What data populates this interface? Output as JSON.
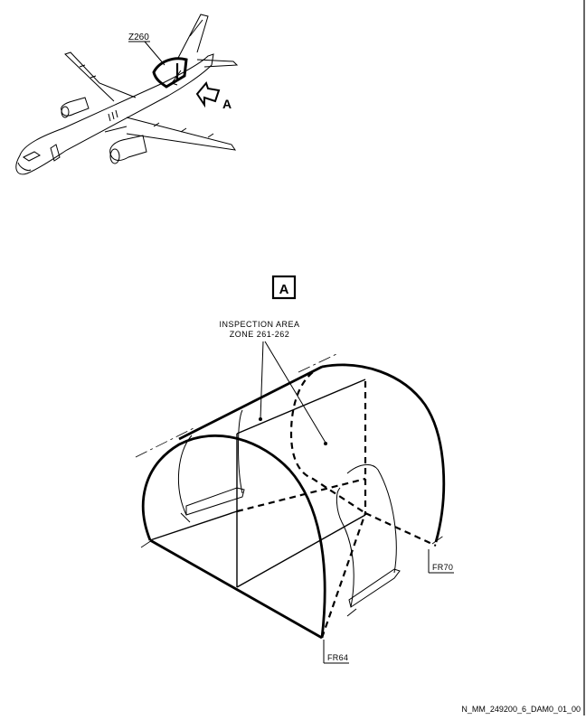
{
  "labels": {
    "zone_callout": "Z260",
    "view_arrow": "A",
    "view_box": "A",
    "inspection_line1": "INSPECTION AREA",
    "inspection_line2": "ZONE 261-262",
    "frame_rear": "FR70",
    "frame_front": "FR64",
    "doc_ref": "N_MM_249200_6_DAM0_01_00"
  }
}
